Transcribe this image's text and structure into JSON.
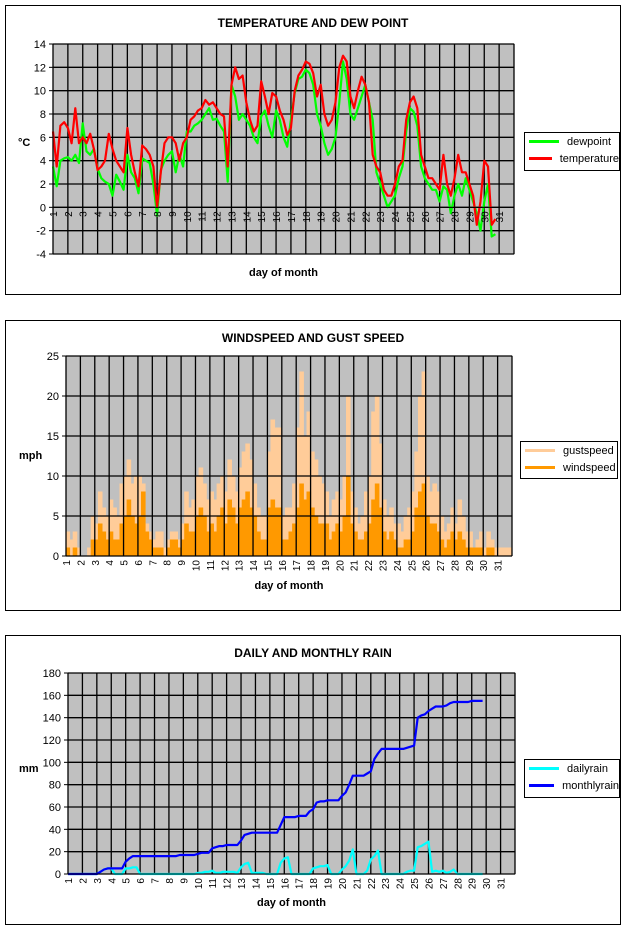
{
  "chart_data": [
    {
      "id": "temp",
      "type": "line",
      "title": "TEMPERATURE AND DEW POINT",
      "xlabel": "day of month",
      "ylabel": "°C",
      "ylim": [
        -4,
        14
      ],
      "yticks": [
        -4,
        -2,
        0,
        2,
        4,
        6,
        8,
        10,
        12,
        14
      ],
      "xlim": [
        1,
        32
      ],
      "xtick_labels": [
        "1",
        "2",
        "3",
        "4",
        "5",
        "6",
        "7",
        "8",
        "9",
        "10",
        "11",
        "12",
        "13",
        "14",
        "15",
        "16",
        "17",
        "18",
        "19",
        "20",
        "21",
        "22",
        "23",
        "24",
        "25",
        "26",
        "27",
        "28",
        "29",
        "30",
        "31"
      ],
      "grid": true,
      "legend_position": "right",
      "points_per_day": 4,
      "series": [
        {
          "name": "dewpoint",
          "color": "#00ff00",
          "values": [
            3.5,
            1.8,
            4.0,
            4.2,
            4.3,
            4.0,
            4.5,
            3.8,
            7.2,
            4.8,
            4.5,
            5.0,
            3.3,
            2.5,
            2.2,
            2.0,
            1.0,
            2.8,
            2.2,
            1.5,
            4.5,
            3.0,
            2.5,
            1.2,
            4.2,
            4.0,
            3.8,
            2.0,
            -0.7,
            3.2,
            4.0,
            4.5,
            4.8,
            3.0,
            4.5,
            3.5,
            6.5,
            6.5,
            7.0,
            7.2,
            7.5,
            8.0,
            8.5,
            7.5,
            7.6,
            7.0,
            6.5,
            2.2,
            10.5,
            9.5,
            7.5,
            8.0,
            7.5,
            7.0,
            6.0,
            5.5,
            7.8,
            8.3,
            7.0,
            6.0,
            8.3,
            7.5,
            6.0,
            5.2,
            7.5,
            9.8,
            11.0,
            11.2,
            11.8,
            11.5,
            10.5,
            8.0,
            7.0,
            5.5,
            4.5,
            5.0,
            6.0,
            9.0,
            12.5,
            11.0,
            8.0,
            7.5,
            8.5,
            9.5,
            10.5,
            9.0,
            7.5,
            3.0,
            2.0,
            1.0,
            0.0,
            0.5,
            1.0,
            2.5,
            3.5,
            6.5,
            8.5,
            8.2,
            7.0,
            3.5,
            2.5,
            2.0,
            1.5,
            1.5,
            0.5,
            1.8,
            1.5,
            -0.5,
            1.0,
            2.0,
            1.0,
            2.5,
            1.5,
            0.5,
            -0.5,
            -2.0,
            0.5,
            2.0,
            -2.5,
            -2.3
          ]
        },
        {
          "name": "temperature",
          "color": "#ff0000",
          "values": [
            6.5,
            3.5,
            7.0,
            7.3,
            6.8,
            5.5,
            8.5,
            5.5,
            6.0,
            5.5,
            6.3,
            5.0,
            3.2,
            3.5,
            4.0,
            6.3,
            5.0,
            4.0,
            3.5,
            3.0,
            6.8,
            4.5,
            3.0,
            1.8,
            5.3,
            5.0,
            4.5,
            3.5,
            0.0,
            3.0,
            5.5,
            6.0,
            6.0,
            5.5,
            4.0,
            5.5,
            6.0,
            7.5,
            7.8,
            8.3,
            8.5,
            9.2,
            8.8,
            9.0,
            8.5,
            8.0,
            7.8,
            3.5,
            10.5,
            12.0,
            11.0,
            11.3,
            9.0,
            7.5,
            6.5,
            7.0,
            10.8,
            9.5,
            8.0,
            9.8,
            9.5,
            8.3,
            7.5,
            6.2,
            6.8,
            10.0,
            11.3,
            11.8,
            12.5,
            12.3,
            11.5,
            9.5,
            10.5,
            8.0,
            7.0,
            7.5,
            9.0,
            12.0,
            13.0,
            12.5,
            9.5,
            8.5,
            10.0,
            11.2,
            10.5,
            9.0,
            4.5,
            3.5,
            3.0,
            1.5,
            1.0,
            1.0,
            2.0,
            3.5,
            4.0,
            7.5,
            9.0,
            9.5,
            8.5,
            4.5,
            3.5,
            2.5,
            2.5,
            2.0,
            1.5,
            4.5,
            2.0,
            1.0,
            2.5,
            4.5,
            3.0,
            3.0,
            2.0,
            1.0,
            -1.5,
            0.5,
            4.0,
            3.5,
            -1.5,
            -1.0
          ]
        }
      ]
    },
    {
      "id": "wind",
      "type": "area",
      "title": "WINDSPEED AND GUST SPEED",
      "xlabel": "day of month",
      "ylabel": "mph",
      "ylim": [
        0,
        25
      ],
      "yticks": [
        0,
        5,
        10,
        15,
        20,
        25
      ],
      "xlim": [
        1,
        32
      ],
      "xtick_labels": [
        "1",
        "2",
        "3",
        "4",
        "5",
        "6",
        "7",
        "8",
        "9",
        "10",
        "11",
        "12",
        "13",
        "14",
        "15",
        "16",
        "17",
        "18",
        "19",
        "20",
        "21",
        "22",
        "23",
        "24",
        "25",
        "26",
        "27",
        "28",
        "29",
        "30",
        "31"
      ],
      "grid": true,
      "legend_position": "right",
      "points_per_day": 4,
      "series": [
        {
          "name": "gustspeed",
          "color": "#ffcc99",
          "values": [
            3,
            2,
            3,
            1,
            0,
            0,
            1,
            5,
            4,
            8,
            6,
            5,
            7,
            6,
            5,
            9,
            10,
            12,
            9,
            10,
            10,
            9,
            4,
            3,
            2,
            3,
            3,
            1,
            2,
            3,
            3,
            2,
            4,
            8,
            6,
            7,
            10,
            11,
            9,
            7,
            8,
            7,
            9,
            10,
            8,
            12,
            10,
            8,
            11,
            13,
            14,
            12,
            9,
            6,
            5,
            5,
            13,
            17,
            16,
            16,
            5,
            6,
            6,
            9,
            16,
            23,
            15,
            18,
            13,
            12,
            10,
            9,
            8,
            5,
            7,
            8,
            7,
            10,
            20,
            8,
            6,
            4,
            5,
            8,
            10,
            18,
            20,
            14,
            7,
            5,
            6,
            4,
            4,
            3,
            5,
            6,
            8,
            13,
            20,
            23,
            10,
            8,
            9,
            8,
            5,
            3,
            4,
            6,
            4,
            7,
            5,
            3,
            3,
            1,
            2,
            3,
            1,
            3,
            2,
            1
          ]
        },
        {
          "name": "windspeed",
          "color": "#ff9900",
          "values": [
            1,
            0,
            1,
            0,
            0,
            0,
            0,
            2,
            2,
            4,
            3,
            2,
            3,
            2,
            2,
            4,
            5,
            7,
            5,
            4,
            5,
            8,
            3,
            2,
            1,
            1,
            1,
            0,
            1,
            2,
            2,
            1,
            2,
            4,
            3,
            3,
            5,
            6,
            5,
            3,
            4,
            3,
            5,
            6,
            4,
            7,
            6,
            4,
            6,
            7,
            8,
            6,
            5,
            3,
            2,
            2,
            6,
            7,
            6,
            6,
            2,
            2,
            3,
            4,
            6,
            9,
            7,
            8,
            6,
            5,
            4,
            4,
            4,
            2,
            3,
            4,
            3,
            5,
            10,
            4,
            3,
            2,
            2,
            3,
            4,
            7,
            9,
            6,
            3,
            2,
            3,
            2,
            1,
            1,
            2,
            2,
            3,
            6,
            8,
            9,
            5,
            4,
            4,
            3,
            2,
            1,
            2,
            3,
            2,
            3,
            2,
            1,
            1,
            1,
            1,
            1,
            0,
            1,
            1,
            0
          ]
        }
      ]
    },
    {
      "id": "rain",
      "type": "line",
      "title": "DAILY AND MONTHLY RAIN",
      "xlabel": "day of month",
      "ylabel": "mm",
      "ylim": [
        0,
        180
      ],
      "yticks": [
        0,
        20,
        40,
        60,
        80,
        100,
        120,
        140,
        160,
        180
      ],
      "xlim": [
        1,
        32
      ],
      "xtick_labels": [
        "1",
        "2",
        "3",
        "4",
        "5",
        "6",
        "7",
        "8",
        "9",
        "10",
        "11",
        "12",
        "13",
        "14",
        "15",
        "16",
        "17",
        "18",
        "19",
        "20",
        "21",
        "22",
        "23",
        "24",
        "25",
        "26",
        "27",
        "28",
        "29",
        "30",
        "31"
      ],
      "grid": true,
      "legend_position": "right",
      "points_per_day": 4,
      "series": [
        {
          "name": "dailyrain",
          "color": "#00ffff",
          "values": [
            0,
            0,
            0,
            0,
            0,
            0,
            0,
            0,
            0,
            2,
            4,
            5,
            5,
            0,
            0,
            0,
            5,
            5,
            6,
            6,
            0,
            0,
            0,
            0,
            0,
            0,
            0,
            0,
            0,
            0,
            0,
            0,
            0,
            0,
            0,
            0,
            1,
            1,
            2,
            2,
            3,
            1,
            1,
            2,
            2,
            2,
            2,
            1,
            6,
            9,
            10,
            1,
            1,
            1,
            1,
            0,
            0,
            0,
            0,
            10,
            14,
            15,
            0,
            0,
            0,
            0,
            0,
            0,
            5,
            6,
            7,
            7,
            8,
            0,
            0,
            0,
            4,
            7,
            12,
            22,
            0,
            0,
            0,
            3,
            13,
            16,
            21,
            0,
            0,
            0,
            0,
            0,
            0,
            0,
            2,
            3,
            3,
            24,
            25,
            27,
            29,
            2,
            3,
            2,
            3,
            1,
            2,
            4,
            0,
            0,
            0,
            0,
            0,
            0,
            0,
            0
          ]
        },
        {
          "name": "monthlyrain",
          "color": "#0000ff",
          "values": [
            0,
            0,
            0,
            0,
            0,
            0,
            0,
            0,
            0,
            2,
            4,
            5,
            5,
            5,
            5,
            5,
            11,
            14,
            16,
            16,
            16,
            16,
            16,
            16,
            16,
            16,
            16,
            16,
            16,
            16,
            16,
            17,
            17,
            17,
            17,
            17,
            18,
            19,
            19,
            19,
            23,
            24,
            25,
            25,
            26,
            26,
            26,
            26,
            30,
            35,
            36,
            37,
            37,
            37,
            37,
            37,
            37,
            37,
            37,
            44,
            51,
            51,
            51,
            51,
            52,
            52,
            52,
            56,
            58,
            64,
            65,
            65,
            66,
            66,
            66,
            66,
            70,
            73,
            80,
            88,
            88,
            88,
            88,
            90,
            92,
            103,
            108,
            112,
            112,
            112,
            112,
            112,
            112,
            112,
            113,
            114,
            115,
            140,
            142,
            143,
            146,
            148,
            150,
            150,
            150,
            151,
            153,
            154,
            154,
            154,
            154,
            154,
            155,
            155,
            155,
            155
          ]
        }
      ]
    }
  ]
}
